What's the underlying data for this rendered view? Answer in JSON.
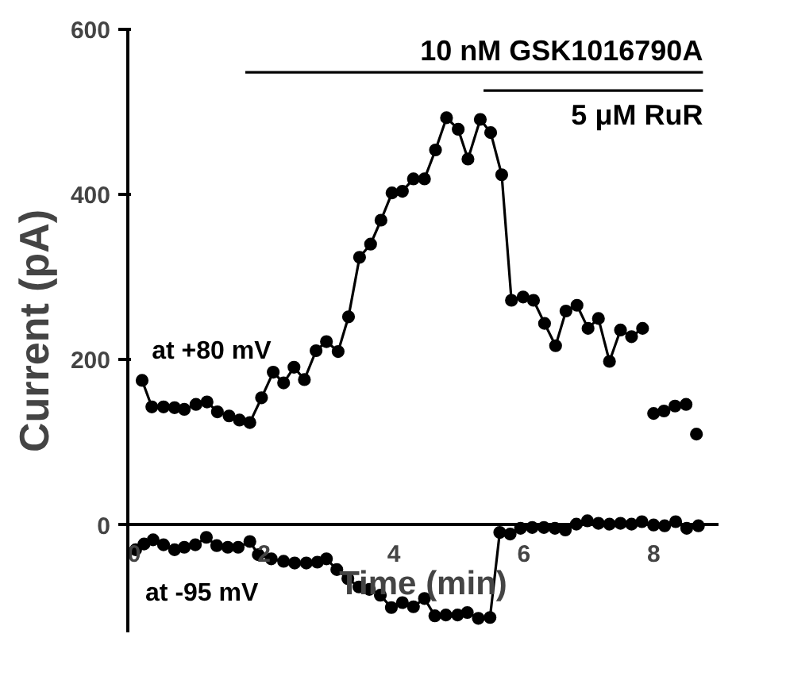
{
  "chart_data": {
    "type": "line",
    "xlabel": "Time (min)",
    "ylabel": "Current (pA)",
    "xlim": [
      -0.1,
      9
    ],
    "ylim": [
      -130,
      600
    ],
    "xticks": [
      0,
      2,
      4,
      6,
      8
    ],
    "yticks": [
      0,
      200,
      400,
      600
    ],
    "grid": false,
    "marker": "circle",
    "line_style": "solid",
    "annotations": [
      {
        "text": "10 nM GSK1016790A",
        "x": 8.76,
        "y": 548
      },
      {
        "text": "5 μM RuR",
        "x": 8.76,
        "y": 526
      }
    ],
    "series": [
      {
        "type": "line",
        "marker": "none",
        "color": "#000000",
        "x": [
          1.71,
          8.76
        ],
        "values": [
          548,
          548
        ]
      },
      {
        "type": "line",
        "marker": "none",
        "color": "#000000",
        "x": [
          5.38,
          8.76
        ],
        "values": [
          526,
          526
        ]
      },
      {
        "name": "at +80 mV",
        "color": "#000000",
        "x": [
          0.12,
          0.27,
          0.45,
          0.62,
          0.77,
          0.95,
          1.12,
          1.28,
          1.46,
          1.62,
          1.78,
          1.96,
          2.14,
          2.3,
          2.46,
          2.62,
          2.8,
          2.96,
          3.14,
          3.3,
          3.47,
          3.64,
          3.8,
          3.97,
          4.13,
          4.3,
          4.47,
          4.64,
          4.81,
          4.99,
          5.14,
          5.33,
          5.49,
          5.66,
          5.81,
          5.99,
          6.15,
          6.32,
          6.49,
          6.65,
          6.82,
          6.99,
          7.15,
          7.32,
          7.49,
          7.66,
          7.83
        ],
        "values": [
          175,
          143,
          143,
          142,
          140,
          146,
          149,
          137,
          132,
          127,
          124,
          154,
          185,
          172,
          191,
          176,
          211,
          222,
          210,
          252,
          324,
          340,
          369,
          402,
          404,
          419,
          419,
          454,
          493,
          479,
          443,
          491,
          475,
          424,
          272,
          276,
          272,
          244,
          217,
          259,
          266,
          238,
          250,
          198,
          236,
          228,
          238
        ]
      },
      {
        "type": "scatter",
        "color": "#000000",
        "x": [
          8.0,
          8.16,
          8.33,
          8.5,
          8.66
        ],
        "values": [
          135,
          138,
          144,
          146,
          110
        ]
      },
      {
        "name": "at -95 mV",
        "color": "#000000",
        "x": [
          0.02,
          0.15,
          0.29,
          0.45,
          0.62,
          0.77,
          0.94,
          1.11,
          1.27,
          1.44,
          1.6,
          1.78,
          1.91,
          2.11,
          2.3,
          2.47,
          2.65,
          2.82,
          2.96,
          3.12,
          3.29,
          3.46,
          3.62,
          3.79,
          3.96,
          4.13,
          4.3,
          4.47,
          4.63,
          4.8,
          4.98,
          5.13,
          5.3,
          5.48,
          5.63,
          5.79,
          5.95,
          6.13,
          6.31,
          6.48,
          6.64,
          6.81,
          6.98,
          7.15,
          7.32,
          7.49,
          7.66,
          7.82,
          8.0,
          8.17,
          8.34,
          8.51,
          8.69
        ],
        "values": [
          -30,
          -23,
          -18,
          -24,
          -30,
          -27,
          -24,
          -15,
          -25,
          -27,
          -27,
          -20,
          -36,
          -41,
          -44,
          -46,
          -46,
          -45,
          -41,
          -54,
          -65,
          -75,
          -78,
          -85,
          -100,
          -94,
          -99,
          -89,
          -110,
          -109,
          -109,
          -106,
          -113,
          -112,
          -9,
          -11,
          -4,
          -3,
          -3,
          -4,
          -6,
          1,
          5,
          2,
          1,
          2,
          1,
          4,
          0,
          -1,
          4,
          -4,
          -1
        ]
      }
    ]
  }
}
